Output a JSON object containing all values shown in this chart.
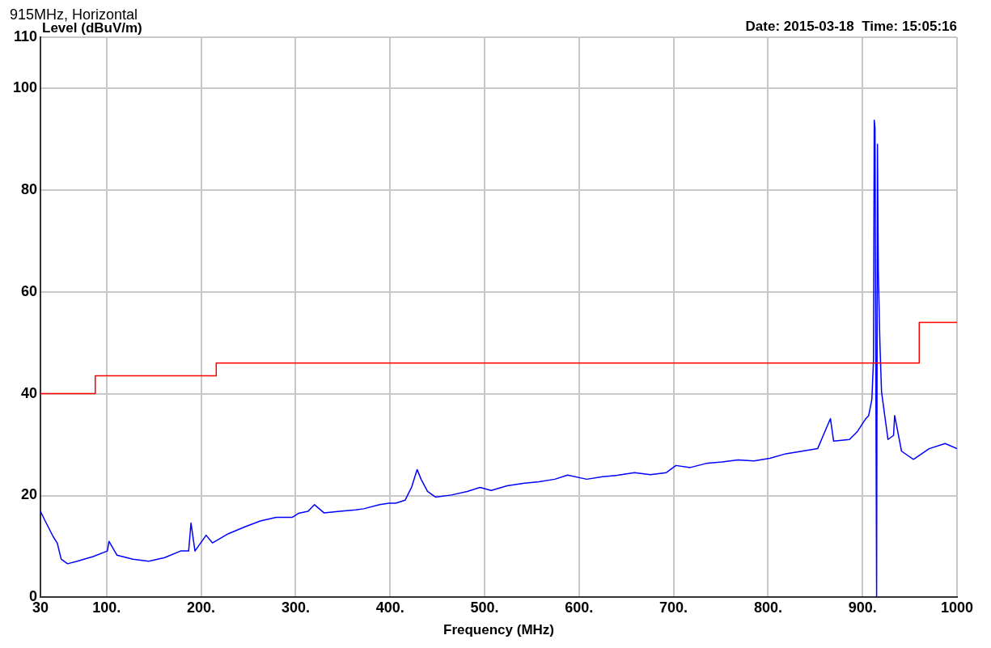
{
  "chart_data": {
    "type": "line",
    "title": "915MHz, Horizontal",
    "subtitle": "Date: 2015-03-18  Time: 15:05:16",
    "xlabel": "Frequency (MHz)",
    "ylabel": "Level (dBuV/m)",
    "xlim": [
      30,
      1000
    ],
    "xticks": [
      30,
      {
        "value": 100,
        "label": "100."
      },
      {
        "value": 200,
        "label": "200."
      },
      {
        "value": 300,
        "label": "300."
      },
      {
        "value": 400,
        "label": "400."
      },
      {
        "value": 500,
        "label": "500."
      },
      {
        "value": 600,
        "label": "600."
      },
      {
        "value": 700,
        "label": "700."
      },
      {
        "value": 800,
        "label": "800."
      },
      {
        "value": 900,
        "label": "900."
      },
      1000
    ],
    "ylim": [
      0,
      110
    ],
    "yticks": [
      0,
      20,
      40,
      60,
      80,
      100,
      110
    ],
    "grid": true,
    "legend": false,
    "marker": "none",
    "series": [
      {
        "type": "step",
        "color": "#ff0000",
        "x": [
          30,
          88,
          216,
          960,
          1000
        ],
        "values": [
          40,
          43.5,
          46,
          54,
          54
        ]
      },
      {
        "type": "line",
        "color": "#0000ff",
        "x": [
          30,
          35,
          43.5,
          47.7,
          51.9,
          58.7,
          68.8,
          85.6,
          100.8,
          102.5,
          110.9,
          127.8,
          144.6,
          161.5,
          178.3,
          186.8,
          189.3,
          193.5,
          205.3,
          212,
          228.9,
          245.7,
          262.6,
          279.4,
          296.3,
          303,
          313.2,
          320,
          330,
          346.9,
          363.7,
          372.2,
          389,
          399.1,
          405.9,
          416,
          422.7,
          428.6,
          432.8,
          439.6,
          448,
          464.9,
          481.7,
          495.2,
          507,
          523.8,
          540.7,
          557.5,
          574.4,
          587.9,
          608.1,
          625,
          641.8,
          658.7,
          675.5,
          692.4,
          702.5,
          717.7,
          734.5,
          751.4,
          768.2,
          785.1,
          801.9,
          818.8,
          835.7,
          852.5,
          866,
          869.4,
          886.2,
          894.7,
          903.1,
          906.5,
          909.9,
          911.6,
          912.4,
          913.2,
          914.9,
          915.8,
          916.7,
          918.4,
          920.1,
          923.5,
          926.9,
          932.8,
          934,
          941.3,
          953.9,
          970.5,
          987.4,
          1000
        ],
        "values": [
          16.9,
          15,
          11.9,
          10.7,
          7.5,
          6.6,
          7.1,
          8,
          9.1,
          11,
          8.3,
          7.5,
          7.1,
          7.8,
          9.1,
          9.1,
          14.6,
          9.1,
          12.2,
          10.7,
          12.5,
          13.8,
          15,
          15.7,
          15.7,
          16.5,
          16.9,
          18.2,
          16.6,
          16.9,
          17.2,
          17.4,
          18.2,
          18.5,
          18.5,
          19.1,
          21.6,
          25.1,
          23.2,
          20.8,
          19.7,
          20.1,
          20.8,
          21.6,
          21,
          21.9,
          22.4,
          22.7,
          23.2,
          24,
          23.2,
          23.7,
          24,
          24.5,
          24.1,
          24.5,
          25.9,
          25.5,
          26.3,
          26.6,
          27,
          26.8,
          27.3,
          28.2,
          28.7,
          29.2,
          35.1,
          30.7,
          31,
          32.6,
          35,
          35.7,
          38.9,
          46.7,
          93.7,
          92.2,
          0,
          89,
          64,
          49.8,
          40.4,
          35.7,
          31,
          31.8,
          35.7,
          28.7,
          27.1,
          29.2,
          30.2,
          29.2
        ]
      }
    ]
  }
}
